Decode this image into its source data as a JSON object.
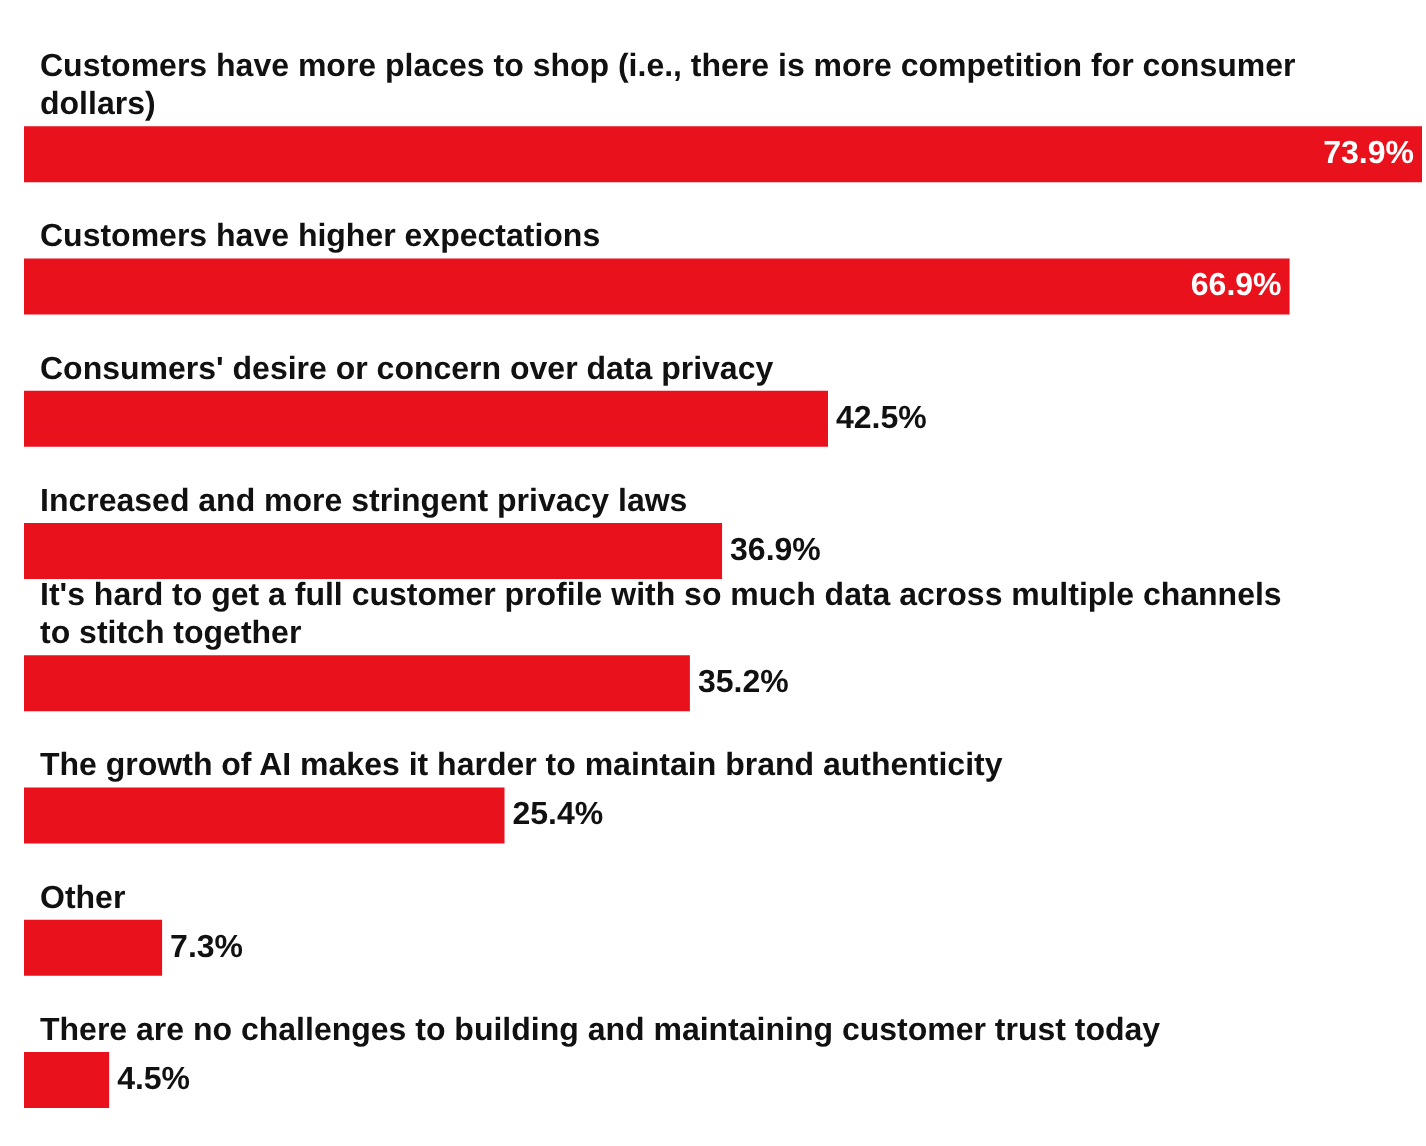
{
  "chart_data": {
    "type": "bar",
    "orientation": "horizontal",
    "categories": [
      "Customers have more places to shop (i.e., there is more competition for consumer dollars)",
      "Customers have higher expectations",
      "Consumers' desire or concern over data privacy",
      "Increased and more stringent privacy laws",
      "It's hard to get a full customer profile with so much data across multiple channels to stitch together",
      "The growth of AI makes it harder to maintain brand authenticity",
      "Other",
      "There are no challenges to building and maintaining customer trust today"
    ],
    "values": [
      73.9,
      66.9,
      42.5,
      36.9,
      35.2,
      25.4,
      7.3,
      4.5
    ],
    "value_labels": [
      "73.9%",
      "66.9%",
      "42.5%",
      "36.9%",
      "35.2%",
      "25.4%",
      "7.3%",
      "4.5%"
    ],
    "color": "#e8111c"
  }
}
